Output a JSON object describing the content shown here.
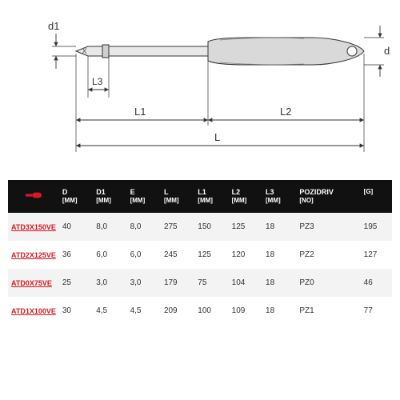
{
  "diagram": {
    "labels": {
      "d1": "d1",
      "d": "d",
      "L3": "L3",
      "L1": "L1",
      "L2": "L2",
      "L": "L"
    },
    "colors": {
      "stroke": "#333333",
      "shaft_fill": "#e8e8e8",
      "handle_fill": "#d9d9d9",
      "label": "#333333",
      "icon_red": "#d71920",
      "icon_bg_black": "#111111"
    }
  },
  "table": {
    "columns": [
      {
        "top": "",
        "unit": "",
        "icon": true
      },
      {
        "top": "D",
        "unit": "[MM]"
      },
      {
        "top": "D1",
        "unit": "[MM]"
      },
      {
        "top": "E",
        "unit": "[MM]"
      },
      {
        "top": "L",
        "unit": "[MM]"
      },
      {
        "top": "L1",
        "unit": "[MM]"
      },
      {
        "top": "L2",
        "unit": "[MM]"
      },
      {
        "top": "L3",
        "unit": "[MM]"
      },
      {
        "top": "POZIDRIV",
        "unit": "[NO]"
      },
      {
        "top": "",
        "unit": "[G]"
      }
    ],
    "rows": [
      [
        "ATD3X150VE",
        "40",
        "8,0",
        "8,0",
        "275",
        "150",
        "125",
        "18",
        "PZ3",
        "195"
      ],
      [
        "ATD2X125VE",
        "36",
        "6,0",
        "6,0",
        "245",
        "125",
        "120",
        "18",
        "PZ2",
        "127"
      ],
      [
        "ATD0X75VE",
        "25",
        "3,0",
        "3,0",
        "179",
        "75",
        "104",
        "18",
        "PZ0",
        "46"
      ],
      [
        "ATD1X100VE",
        "30",
        "4,5",
        "4,5",
        "209",
        "100",
        "109",
        "18",
        "PZ1",
        "77"
      ]
    ]
  }
}
